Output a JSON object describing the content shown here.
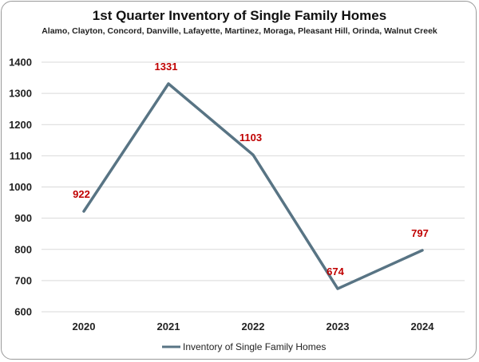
{
  "chart_data": {
    "type": "line",
    "title": "1st Quarter Inventory of Single Family Homes",
    "subtitle": "Alamo, Clayton, Concord, Danville, Lafayette, Martinez, Moraga, Pleasant Hill, Orinda, Walnut Creek",
    "categories": [
      "2020",
      "2021",
      "2022",
      "2023",
      "2024"
    ],
    "series": [
      {
        "name": "Inventory of Single Family Homes",
        "values": [
          922,
          1331,
          1103,
          674,
          797
        ],
        "color": "#587484"
      }
    ],
    "data_labels": [
      "922",
      "1331",
      "1103",
      "674",
      "797"
    ],
    "data_label_color": "#c00000",
    "ylim": [
      600,
      1400
    ],
    "yticks": [
      "600",
      "700",
      "800",
      "900",
      "1000",
      "1100",
      "1200",
      "1300",
      "1400"
    ],
    "grid": true,
    "legend": "bottom"
  }
}
